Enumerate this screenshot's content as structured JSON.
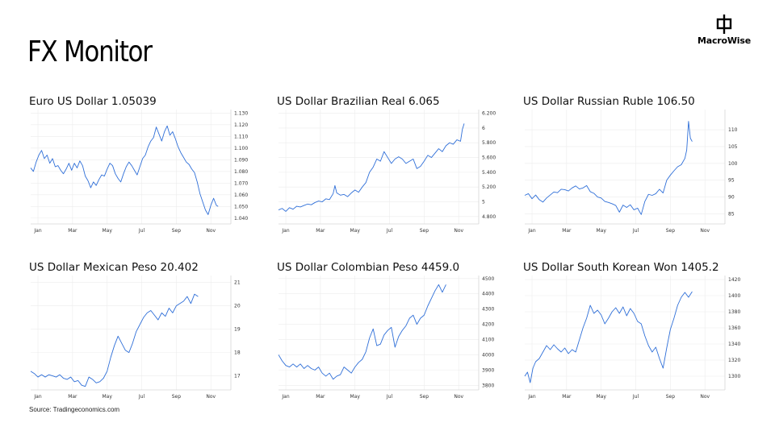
{
  "page": {
    "title": "FX Monitor",
    "brand": "MacroWise",
    "source": "Source: Tradingeconomics.com",
    "line_color": "#2f6fd8",
    "grid_color": "#ececec"
  },
  "chart_data": [
    {
      "type": "line",
      "title": "Euro US Dollar 1.05039",
      "x_ticks": [
        "Jan",
        "Mar",
        "May",
        "Jul",
        "Sep",
        "Nov"
      ],
      "x_range": [
        0,
        11
      ],
      "ylim": [
        1.035,
        1.133
      ],
      "y_ticks": [
        1.04,
        1.05,
        1.06,
        1.07,
        1.08,
        1.09,
        1.1,
        1.11,
        1.12,
        1.13
      ],
      "y_tick_labels": [
        "1.040",
        "1.050",
        "1.060",
        "1.070",
        "1.080",
        "1.090",
        "1.100",
        "1.110",
        "1.120",
        "1.130"
      ],
      "points": [
        [
          0.0,
          1.083
        ],
        [
          0.15,
          1.08
        ],
        [
          0.3,
          1.088
        ],
        [
          0.45,
          1.094
        ],
        [
          0.6,
          1.098
        ],
        [
          0.75,
          1.091
        ],
        [
          0.9,
          1.094
        ],
        [
          1.05,
          1.087
        ],
        [
          1.2,
          1.091
        ],
        [
          1.35,
          1.084
        ],
        [
          1.5,
          1.085
        ],
        [
          1.65,
          1.081
        ],
        [
          1.8,
          1.078
        ],
        [
          1.95,
          1.082
        ],
        [
          2.1,
          1.087
        ],
        [
          2.25,
          1.081
        ],
        [
          2.4,
          1.087
        ],
        [
          2.55,
          1.083
        ],
        [
          2.7,
          1.089
        ],
        [
          2.85,
          1.085
        ],
        [
          3.0,
          1.076
        ],
        [
          3.15,
          1.072
        ],
        [
          3.3,
          1.066
        ],
        [
          3.45,
          1.071
        ],
        [
          3.6,
          1.068
        ],
        [
          3.75,
          1.073
        ],
        [
          3.9,
          1.077
        ],
        [
          4.05,
          1.076
        ],
        [
          4.2,
          1.082
        ],
        [
          4.35,
          1.087
        ],
        [
          4.5,
          1.085
        ],
        [
          4.65,
          1.078
        ],
        [
          4.8,
          1.074
        ],
        [
          4.95,
          1.071
        ],
        [
          5.1,
          1.078
        ],
        [
          5.25,
          1.084
        ],
        [
          5.4,
          1.088
        ],
        [
          5.55,
          1.085
        ],
        [
          5.7,
          1.081
        ],
        [
          5.85,
          1.077
        ],
        [
          6.0,
          1.084
        ],
        [
          6.15,
          1.091
        ],
        [
          6.3,
          1.094
        ],
        [
          6.45,
          1.101
        ],
        [
          6.6,
          1.106
        ],
        [
          6.75,
          1.109
        ],
        [
          6.9,
          1.118
        ],
        [
          7.05,
          1.112
        ],
        [
          7.2,
          1.106
        ],
        [
          7.35,
          1.114
        ],
        [
          7.5,
          1.119
        ],
        [
          7.65,
          1.111
        ],
        [
          7.8,
          1.114
        ],
        [
          7.95,
          1.108
        ],
        [
          8.1,
          1.101
        ],
        [
          8.25,
          1.096
        ],
        [
          8.4,
          1.092
        ],
        [
          8.55,
          1.088
        ],
        [
          8.7,
          1.086
        ],
        [
          8.85,
          1.082
        ],
        [
          9.0,
          1.079
        ],
        [
          9.15,
          1.071
        ],
        [
          9.3,
          1.061
        ],
        [
          9.45,
          1.054
        ],
        [
          9.6,
          1.047
        ],
        [
          9.75,
          1.043
        ],
        [
          9.9,
          1.051
        ],
        [
          10.05,
          1.057
        ],
        [
          10.2,
          1.051
        ],
        [
          10.3,
          1.05
        ]
      ]
    },
    {
      "type": "line",
      "title": "US Dollar Brazilian Real 6.065",
      "x_ticks": [
        "Jan",
        "Mar",
        "May",
        "Jul",
        "Sep",
        "Nov"
      ],
      "x_range": [
        0,
        11
      ],
      "ylim": [
        4.7,
        6.25
      ],
      "y_ticks": [
        4.8,
        5.0,
        5.2,
        5.4,
        5.6,
        5.8,
        6.0,
        6.2
      ],
      "y_tick_labels": [
        "4.800",
        "5",
        "5.200",
        "5.400",
        "5.600",
        "5.800",
        "6",
        "6.200"
      ],
      "points": [
        [
          0.0,
          4.89
        ],
        [
          0.2,
          4.91
        ],
        [
          0.4,
          4.87
        ],
        [
          0.6,
          4.92
        ],
        [
          0.8,
          4.9
        ],
        [
          1.0,
          4.94
        ],
        [
          1.2,
          4.93
        ],
        [
          1.4,
          4.95
        ],
        [
          1.6,
          4.97
        ],
        [
          1.8,
          4.96
        ],
        [
          2.0,
          4.99
        ],
        [
          2.2,
          5.01
        ],
        [
          2.4,
          5.0
        ],
        [
          2.6,
          5.04
        ],
        [
          2.8,
          5.03
        ],
        [
          3.0,
          5.11
        ],
        [
          3.1,
          5.22
        ],
        [
          3.2,
          5.12
        ],
        [
          3.4,
          5.09
        ],
        [
          3.6,
          5.1
        ],
        [
          3.8,
          5.07
        ],
        [
          4.0,
          5.12
        ],
        [
          4.2,
          5.16
        ],
        [
          4.4,
          5.13
        ],
        [
          4.6,
          5.2
        ],
        [
          4.8,
          5.26
        ],
        [
          5.0,
          5.4
        ],
        [
          5.2,
          5.47
        ],
        [
          5.4,
          5.58
        ],
        [
          5.6,
          5.55
        ],
        [
          5.8,
          5.68
        ],
        [
          6.0,
          5.6
        ],
        [
          6.2,
          5.52
        ],
        [
          6.4,
          5.58
        ],
        [
          6.6,
          5.61
        ],
        [
          6.8,
          5.58
        ],
        [
          7.0,
          5.52
        ],
        [
          7.2,
          5.55
        ],
        [
          7.4,
          5.58
        ],
        [
          7.6,
          5.45
        ],
        [
          7.8,
          5.48
        ],
        [
          8.0,
          5.55
        ],
        [
          8.2,
          5.63
        ],
        [
          8.4,
          5.6
        ],
        [
          8.6,
          5.66
        ],
        [
          8.8,
          5.72
        ],
        [
          9.0,
          5.68
        ],
        [
          9.2,
          5.76
        ],
        [
          9.4,
          5.8
        ],
        [
          9.6,
          5.78
        ],
        [
          9.8,
          5.84
        ],
        [
          10.0,
          5.82
        ],
        [
          10.1,
          5.98
        ],
        [
          10.2,
          6.06
        ]
      ]
    },
    {
      "type": "line",
      "title": "US Dollar Russian Ruble 106.50",
      "x_ticks": [
        "Jan",
        "Mar",
        "May",
        "Jul",
        "Sep",
        "Nov"
      ],
      "x_range": [
        0,
        11
      ],
      "ylim": [
        82,
        116
      ],
      "y_ticks": [
        85,
        90,
        95,
        100,
        105,
        110
      ],
      "y_tick_labels": [
        "85",
        "90",
        "95",
        "100",
        "105",
        "110"
      ],
      "points": [
        [
          0.0,
          90.5
        ],
        [
          0.2,
          91.0
        ],
        [
          0.4,
          89.5
        ],
        [
          0.6,
          90.6
        ],
        [
          0.8,
          89.2
        ],
        [
          1.0,
          88.5
        ],
        [
          1.2,
          89.7
        ],
        [
          1.4,
          90.6
        ],
        [
          1.6,
          91.5
        ],
        [
          1.8,
          91.3
        ],
        [
          2.0,
          92.3
        ],
        [
          2.2,
          92.2
        ],
        [
          2.4,
          91.8
        ],
        [
          2.6,
          92.7
        ],
        [
          2.8,
          93.3
        ],
        [
          3.0,
          92.4
        ],
        [
          3.2,
          92.7
        ],
        [
          3.4,
          93.4
        ],
        [
          3.6,
          91.6
        ],
        [
          3.8,
          91.1
        ],
        [
          4.0,
          90.0
        ],
        [
          4.2,
          89.7
        ],
        [
          4.4,
          88.7
        ],
        [
          4.6,
          88.4
        ],
        [
          4.8,
          88.0
        ],
        [
          5.0,
          87.5
        ],
        [
          5.2,
          85.5
        ],
        [
          5.4,
          87.6
        ],
        [
          5.6,
          86.9
        ],
        [
          5.8,
          87.7
        ],
        [
          6.0,
          86.2
        ],
        [
          6.2,
          86.7
        ],
        [
          6.4,
          84.8
        ],
        [
          6.6,
          88.7
        ],
        [
          6.8,
          90.8
        ],
        [
          7.0,
          90.5
        ],
        [
          7.2,
          91.0
        ],
        [
          7.4,
          92.3
        ],
        [
          7.6,
          91.2
        ],
        [
          7.8,
          95.0
        ],
        [
          8.0,
          96.5
        ],
        [
          8.2,
          97.8
        ],
        [
          8.4,
          99.0
        ],
        [
          8.6,
          99.6
        ],
        [
          8.8,
          101.5
        ],
        [
          8.9,
          104.0
        ],
        [
          9.0,
          112.5
        ],
        [
          9.1,
          107.5
        ],
        [
          9.2,
          106.5
        ]
      ]
    },
    {
      "type": "line",
      "title": "US Dollar Mexican Peso 20.402",
      "x_ticks": [
        "Jan",
        "Mar",
        "May",
        "Jul",
        "Sep",
        "Nov"
      ],
      "x_range": [
        0,
        11
      ],
      "ylim": [
        16.4,
        21.3
      ],
      "y_ticks": [
        17,
        18,
        19,
        20,
        21
      ],
      "y_tick_labels": [
        "17",
        "18",
        "19",
        "20",
        "21"
      ],
      "points": [
        [
          0.0,
          17.2
        ],
        [
          0.2,
          17.1
        ],
        [
          0.4,
          16.95
        ],
        [
          0.6,
          17.05
        ],
        [
          0.8,
          16.95
        ],
        [
          1.0,
          17.05
        ],
        [
          1.2,
          17.0
        ],
        [
          1.4,
          16.95
        ],
        [
          1.6,
          17.05
        ],
        [
          1.8,
          16.9
        ],
        [
          2.0,
          16.85
        ],
        [
          2.2,
          16.95
        ],
        [
          2.4,
          16.75
        ],
        [
          2.6,
          16.8
        ],
        [
          2.8,
          16.6
        ],
        [
          3.0,
          16.55
        ],
        [
          3.2,
          16.95
        ],
        [
          3.4,
          16.85
        ],
        [
          3.6,
          16.7
        ],
        [
          3.8,
          16.75
        ],
        [
          4.0,
          16.9
        ],
        [
          4.2,
          17.2
        ],
        [
          4.4,
          17.8
        ],
        [
          4.6,
          18.3
        ],
        [
          4.8,
          18.7
        ],
        [
          5.0,
          18.4
        ],
        [
          5.2,
          18.1
        ],
        [
          5.4,
          18.0
        ],
        [
          5.6,
          18.4
        ],
        [
          5.8,
          18.9
        ],
        [
          6.0,
          19.2
        ],
        [
          6.2,
          19.5
        ],
        [
          6.4,
          19.7
        ],
        [
          6.6,
          19.8
        ],
        [
          6.8,
          19.6
        ],
        [
          7.0,
          19.4
        ],
        [
          7.2,
          19.7
        ],
        [
          7.4,
          19.55
        ],
        [
          7.6,
          19.9
        ],
        [
          7.8,
          19.7
        ],
        [
          8.0,
          20.0
        ],
        [
          8.2,
          20.1
        ],
        [
          8.4,
          20.2
        ],
        [
          8.6,
          20.4
        ],
        [
          8.8,
          20.1
        ],
        [
          9.0,
          20.5
        ],
        [
          9.2,
          20.4
        ]
      ]
    },
    {
      "type": "line",
      "title": "US Dollar Colombian Peso 4459.0",
      "x_ticks": [
        "Jan",
        "Mar",
        "May",
        "Jul",
        "Sep",
        "Nov"
      ],
      "x_range": [
        0,
        11
      ],
      "ylim": [
        3770,
        4520
      ],
      "y_ticks": [
        3800,
        3900,
        4000,
        4100,
        4200,
        4300,
        4400,
        4500
      ],
      "y_tick_labels": [
        "3800",
        "3900",
        "4000",
        "4100",
        "4200",
        "4300",
        "4400",
        "4500"
      ],
      "points": [
        [
          0.0,
          4000
        ],
        [
          0.2,
          3960
        ],
        [
          0.4,
          3930
        ],
        [
          0.6,
          3920
        ],
        [
          0.8,
          3940
        ],
        [
          1.0,
          3920
        ],
        [
          1.2,
          3940
        ],
        [
          1.4,
          3910
        ],
        [
          1.6,
          3930
        ],
        [
          1.8,
          3910
        ],
        [
          2.0,
          3900
        ],
        [
          2.2,
          3920
        ],
        [
          2.4,
          3880
        ],
        [
          2.6,
          3860
        ],
        [
          2.8,
          3880
        ],
        [
          3.0,
          3840
        ],
        [
          3.2,
          3860
        ],
        [
          3.4,
          3870
        ],
        [
          3.6,
          3920
        ],
        [
          3.8,
          3900
        ],
        [
          4.0,
          3880
        ],
        [
          4.2,
          3920
        ],
        [
          4.4,
          3950
        ],
        [
          4.6,
          3970
        ],
        [
          4.8,
          4020
        ],
        [
          5.0,
          4110
        ],
        [
          5.2,
          4170
        ],
        [
          5.4,
          4060
        ],
        [
          5.6,
          4070
        ],
        [
          5.8,
          4130
        ],
        [
          6.0,
          4160
        ],
        [
          6.2,
          4180
        ],
        [
          6.4,
          4050
        ],
        [
          6.6,
          4120
        ],
        [
          6.8,
          4160
        ],
        [
          7.0,
          4190
        ],
        [
          7.2,
          4240
        ],
        [
          7.4,
          4260
        ],
        [
          7.6,
          4200
        ],
        [
          7.8,
          4240
        ],
        [
          8.0,
          4260
        ],
        [
          8.2,
          4320
        ],
        [
          8.4,
          4370
        ],
        [
          8.6,
          4420
        ],
        [
          8.8,
          4460
        ],
        [
          9.0,
          4410
        ],
        [
          9.2,
          4460
        ]
      ]
    },
    {
      "type": "line",
      "title": "US Dollar South Korean Won 1405.2",
      "x_ticks": [
        "Jan",
        "Mar",
        "May",
        "Jul",
        "Sep",
        "Nov"
      ],
      "x_range": [
        0,
        11
      ],
      "ylim": [
        1283,
        1425
      ],
      "y_ticks": [
        1300,
        1320,
        1340,
        1360,
        1380,
        1400,
        1420
      ],
      "y_tick_labels": [
        "1300",
        "1320",
        "1340",
        "1360",
        "1380",
        "1400",
        "1420"
      ],
      "points": [
        [
          0.0,
          1300
        ],
        [
          0.15,
          1305
        ],
        [
          0.3,
          1292
        ],
        [
          0.45,
          1310
        ],
        [
          0.6,
          1318
        ],
        [
          0.8,
          1322
        ],
        [
          1.0,
          1330
        ],
        [
          1.2,
          1338
        ],
        [
          1.4,
          1333
        ],
        [
          1.6,
          1339
        ],
        [
          1.8,
          1334
        ],
        [
          2.0,
          1330
        ],
        [
          2.2,
          1335
        ],
        [
          2.4,
          1328
        ],
        [
          2.6,
          1333
        ],
        [
          2.8,
          1330
        ],
        [
          3.0,
          1345
        ],
        [
          3.2,
          1360
        ],
        [
          3.4,
          1372
        ],
        [
          3.6,
          1388
        ],
        [
          3.8,
          1378
        ],
        [
          4.0,
          1382
        ],
        [
          4.2,
          1376
        ],
        [
          4.4,
          1365
        ],
        [
          4.6,
          1372
        ],
        [
          4.8,
          1380
        ],
        [
          5.0,
          1385
        ],
        [
          5.2,
          1378
        ],
        [
          5.4,
          1386
        ],
        [
          5.6,
          1375
        ],
        [
          5.8,
          1384
        ],
        [
          6.0,
          1378
        ],
        [
          6.2,
          1368
        ],
        [
          6.4,
          1365
        ],
        [
          6.6,
          1350
        ],
        [
          6.8,
          1338
        ],
        [
          7.0,
          1330
        ],
        [
          7.2,
          1336
        ],
        [
          7.4,
          1322
        ],
        [
          7.6,
          1310
        ],
        [
          7.8,
          1335
        ],
        [
          8.0,
          1358
        ],
        [
          8.2,
          1372
        ],
        [
          8.4,
          1388
        ],
        [
          8.6,
          1398
        ],
        [
          8.8,
          1404
        ],
        [
          9.0,
          1398
        ],
        [
          9.2,
          1405
        ]
      ]
    }
  ]
}
